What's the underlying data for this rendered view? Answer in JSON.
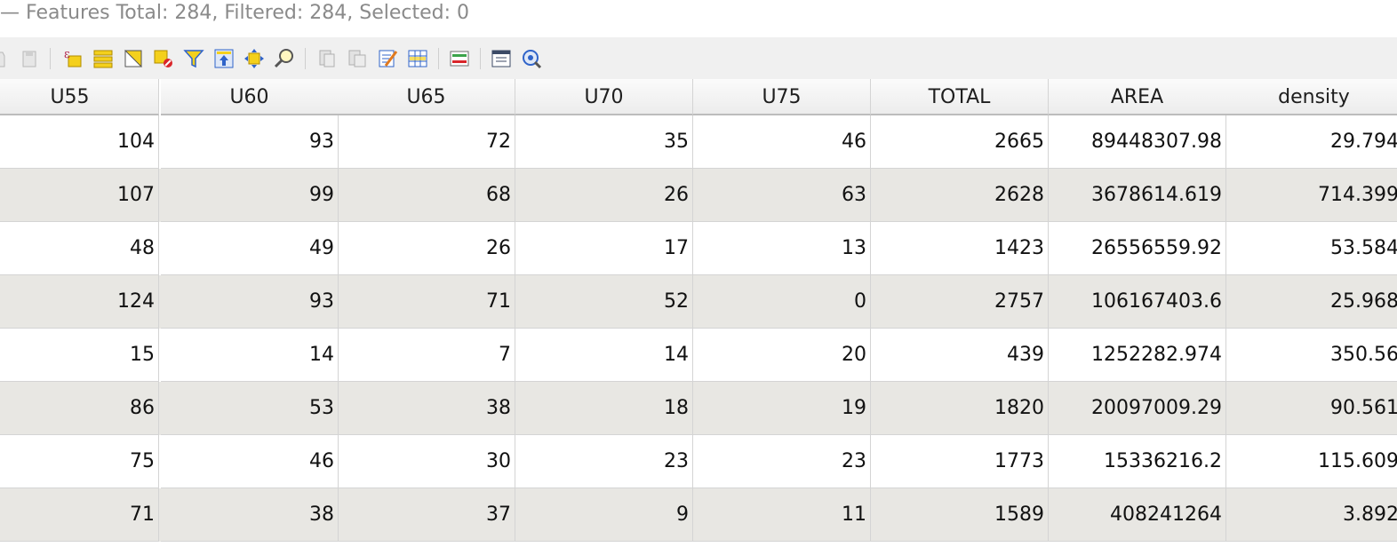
{
  "window": {
    "title": "— Features Total: 284, Filtered: 284, Selected: 0"
  },
  "toolbar": {
    "icons": [
      "toggle-edit-icon",
      "save-edits-icon",
      "select-by-expression-icon",
      "select-all-icon",
      "invert-selection-icon",
      "deselect-all-icon",
      "filter-select-icon",
      "move-selection-to-top-icon",
      "pan-map-to-selected-icon",
      "zoom-map-to-selected-icon",
      "copy-rows-icon",
      "paste-features-icon",
      "delete-field-icon",
      "new-field-icon",
      "field-calculator-icon",
      "conditional-formatting-icon",
      "dock-table-icon",
      "actions-icon"
    ]
  },
  "table": {
    "columns": [
      "U55",
      "U60",
      "U65",
      "U70",
      "U75",
      "TOTAL",
      "AREA",
      "density"
    ],
    "rows": [
      [
        "104",
        "93",
        "72",
        "35",
        "46",
        "2665",
        "89448307.98",
        "29.794"
      ],
      [
        "107",
        "99",
        "68",
        "26",
        "63",
        "2628",
        "3678614.619",
        "714.399"
      ],
      [
        "48",
        "49",
        "26",
        "17",
        "13",
        "1423",
        "26556559.92",
        "53.584"
      ],
      [
        "124",
        "93",
        "71",
        "52",
        "0",
        "2757",
        "106167403.6",
        "25.968"
      ],
      [
        "15",
        "14",
        "7",
        "14",
        "20",
        "439",
        "1252282.974",
        "350.56"
      ],
      [
        "86",
        "53",
        "38",
        "18",
        "19",
        "1820",
        "20097009.29",
        "90.561"
      ],
      [
        "75",
        "46",
        "30",
        "23",
        "23",
        "1773",
        "15336216.2",
        "115.609"
      ],
      [
        "71",
        "38",
        "37",
        "9",
        "11",
        "1589",
        "408241264",
        "3.892"
      ]
    ]
  },
  "colors": {
    "row_alt": "#e8e7e3",
    "grid": "#d4d4d4",
    "toolbar_bg": "#f0f0f0",
    "icon_yellow": "#f4d01c",
    "icon_blue": "#2f63c9"
  }
}
